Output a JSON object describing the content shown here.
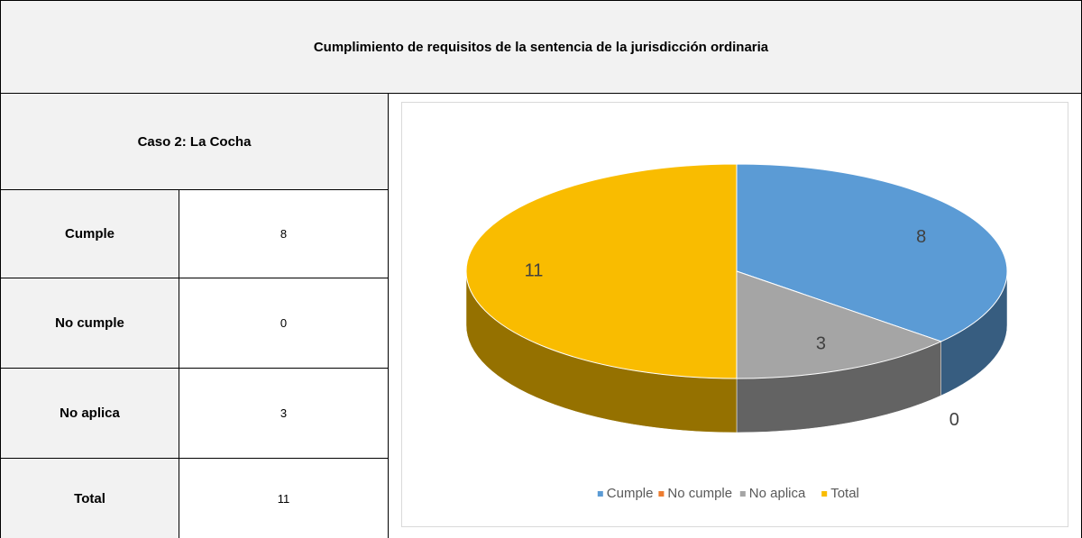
{
  "title": "Cumplimiento de requisitos de la sentencia de la jurisdicción ordinaria",
  "table": {
    "header": "Caso 2: La Cocha",
    "rows": [
      [
        "Cumple",
        8
      ],
      [
        "No cumple",
        0
      ],
      [
        "No aplica",
        3
      ],
      [
        "Total",
        11
      ]
    ]
  },
  "chart_data": {
    "type": "pie",
    "categories": [
      "Cumple",
      "No cumple",
      "No aplica",
      "Total"
    ],
    "values": [
      8,
      0,
      3,
      11
    ],
    "colors": [
      "#5b9bd5",
      "#ed7d31",
      "#a5a5a5",
      "#f9bc00"
    ],
    "legend": "bottom"
  }
}
